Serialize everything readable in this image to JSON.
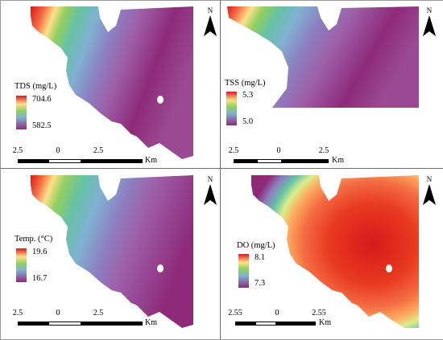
{
  "compass_letter": "N",
  "distance_unit": "Km",
  "panels": [
    {
      "id": "tds",
      "legend": {
        "title": "TDS (mg/L)",
        "max": "704.6",
        "min": "582.5",
        "ramp": "spectral-red-to-purple"
      },
      "scale": {
        "left": "2.5",
        "center": "0",
        "right": "2.5",
        "unit": "Km"
      }
    },
    {
      "id": "tss",
      "legend": {
        "title": "TSS (mg/L)",
        "max": "5.3",
        "min": "5.0",
        "ramp": "spectral-red-to-purple"
      },
      "scale": {
        "left": "2.5",
        "center": "0",
        "right": "2.5",
        "unit": "Km"
      }
    },
    {
      "id": "temp",
      "legend": {
        "title": "Temp. (°C)",
        "max": "19.6",
        "min": "16.7",
        "ramp": "spectral-red-to-purple"
      },
      "scale": {
        "left": "2.5",
        "center": "0",
        "right": "2.5",
        "unit": "Km"
      }
    },
    {
      "id": "do",
      "legend": {
        "title": "DO (mg/L)",
        "max": "8.1",
        "min": "7.3",
        "ramp": "spectral-red-to-purple"
      },
      "scale": {
        "left": "2.55",
        "center": "0",
        "right": "2.55",
        "unit": "Km"
      }
    }
  ],
  "colors": {
    "ramp": [
      "#d7191c",
      "#f46d43",
      "#fdae61",
      "#fee08b",
      "#d9ef8b",
      "#91cf60",
      "#66c2a5",
      "#80b1d3",
      "#8c7fc0",
      "#9e5fa8",
      "#8e2a79"
    ]
  }
}
